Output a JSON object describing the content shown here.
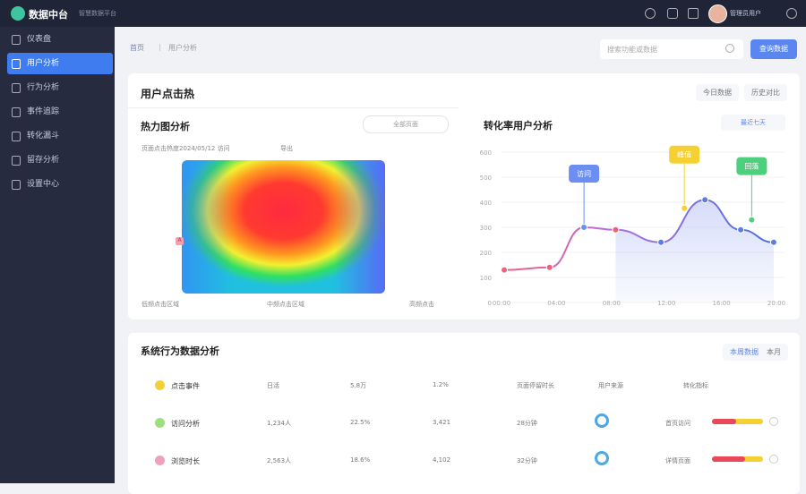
{
  "header": {
    "logo": "数据中台",
    "subtitle": "智慧数据平台",
    "user": "管理员用户"
  },
  "sidebar": {
    "items": [
      "仪表盘",
      "用户分析",
      "行为分析",
      "事件追踪",
      "转化漏斗",
      "留存分析",
      "设置中心"
    ]
  },
  "breadcrumb": [
    "首页",
    "用户分析"
  ],
  "search": {
    "placeholder": "搜索功能或数据",
    "button": "查询数据"
  },
  "heat_card": {
    "title": "用户点击热",
    "tabs": [
      "今日数据",
      "历史对比"
    ]
  },
  "heatmap": {
    "title": "热力图分析",
    "dropdown": "全部页面",
    "top_labels": [
      "页面点击热度",
      "2024/05/12 访问",
      "导出"
    ],
    "bottom_labels": [
      "低频点击区域",
      "中频点击区域",
      "高频点击"
    ],
    "marker": "A"
  },
  "line_chart": {
    "type": "line",
    "title": "转化率用户分析",
    "dropdown": "最近七天",
    "ylim": [
      0,
      600
    ],
    "yticks": [
      0,
      100,
      200,
      300,
      400,
      500,
      600
    ],
    "xlim": [
      0,
      20
    ],
    "xticks": [
      {
        "value": 0,
        "label": "00:00"
      },
      {
        "value": 4,
        "label": "04:00"
      },
      {
        "value": 8,
        "label": "08:00"
      },
      {
        "value": 12,
        "label": "12:00"
      },
      {
        "value": 16,
        "label": "16:00"
      },
      {
        "value": 20,
        "label": "20:00"
      }
    ],
    "x": [
      0.2,
      3.5,
      6,
      8.3,
      11.6,
      14.8,
      17.4,
      19.8
    ],
    "values": [
      130,
      140,
      300,
      290,
      240,
      410,
      290,
      240
    ],
    "annotations": [
      {
        "x": 6,
        "y": 300,
        "label": "访问",
        "color": "#6b8ef0"
      },
      {
        "x": 13.3,
        "y": 376,
        "label": "峰值",
        "color": "#f5d033"
      },
      {
        "x": 18.2,
        "y": 330,
        "label": "回落",
        "color": "#4cd07d"
      }
    ]
  },
  "activity": {
    "title": "系统行为数据分析",
    "tabs": [
      "本周数据",
      "本月"
    ],
    "rows": [
      {
        "name": "点击事件",
        "color": "#f5d033",
        "cells": [
          "日活",
          "5.8万",
          "1.2%",
          "页面停留时长",
          "用户来源",
          "转化指标"
        ]
      },
      {
        "name": "访问分析",
        "color": "#9be07a",
        "cells": [
          "1,234人",
          "22.5%",
          "3,421",
          "28分钟",
          "",
          "首页访问"
        ],
        "progress": 47
      },
      {
        "name": "浏览时长",
        "color": "#f0a0b8",
        "cells": [
          "2,563人",
          "18.6%",
          "4,102",
          "32分钟",
          "",
          "详情页面"
        ],
        "progress": 65
      }
    ]
  }
}
